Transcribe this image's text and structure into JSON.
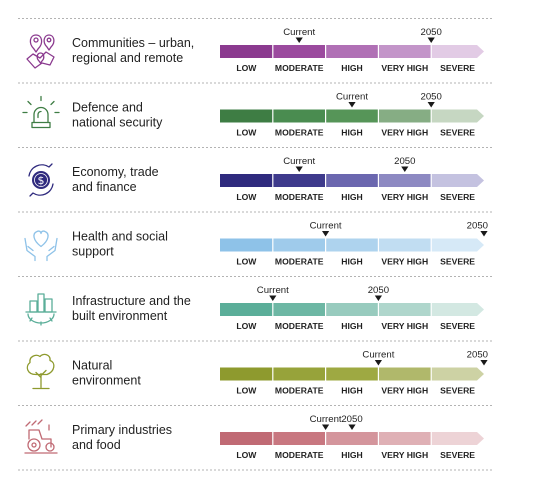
{
  "chart_data": {
    "type": "risk-scale",
    "levels": [
      "LOW",
      "MODERATE",
      "HIGH",
      "VERY HIGH",
      "SEVERE"
    ],
    "marker_labels": {
      "current": "Current",
      "future": "2050"
    },
    "rows": [
      {
        "title": [
          "Communities – urban,",
          "regional and remote"
        ],
        "icon": "map-pins-icon",
        "color": "#8B3A8F",
        "current": 1.5,
        "future": 4.0,
        "segments": [
          "#8B3A8F",
          "#9B4A9E",
          "#B070B5",
          "#C395C9",
          "#E2CBE5"
        ]
      },
      {
        "title": [
          "Defence and",
          "national security"
        ],
        "icon": "siren-icon",
        "color": "#3E7D44",
        "current": 2.5,
        "future": 4.0,
        "segments": [
          "#3E7D44",
          "#4A8C50",
          "#569558",
          "#86AD84",
          "#C6D7C2"
        ]
      },
      {
        "title": [
          "Economy, trade",
          "and finance"
        ],
        "icon": "coin-cycle-icon",
        "color": "#2F2A7E",
        "current": 1.5,
        "future": 3.5,
        "segments": [
          "#2F2A7E",
          "#3E3A8C",
          "#6B67AF",
          "#8D89C2",
          "#C4C2E0"
        ]
      },
      {
        "title": [
          "Health and social",
          "support"
        ],
        "icon": "heart-hands-icon",
        "color": "#8EC2E8",
        "current": 2.0,
        "future": 5.0,
        "segments": [
          "#8EC2E8",
          "#9FCBEB",
          "#AED3EE",
          "#C1DDF2",
          "#D6E9F7"
        ]
      },
      {
        "title": [
          "Infrastructure and the",
          "built environment"
        ],
        "icon": "city-gear-icon",
        "color": "#5BAE99",
        "current": 1.0,
        "future": 3.0,
        "segments": [
          "#5BAE99",
          "#6DB7A4",
          "#98CBBE",
          "#AFD6CC",
          "#D3E8E2"
        ]
      },
      {
        "title": [
          "Natural",
          "environment"
        ],
        "icon": "tree-icon",
        "color": "#8E9A2E",
        "current": 3.0,
        "future": 5.0,
        "segments": [
          "#8E9A2E",
          "#97A33A",
          "#9EA942",
          "#B0B86B",
          "#CDD2A4"
        ]
      },
      {
        "title": [
          "Primary industries",
          "and food"
        ],
        "icon": "tractor-icon",
        "color": "#C06A74",
        "current": 2.0,
        "future": 2.5,
        "segments": [
          "#C06A74",
          "#C87780",
          "#D4959C",
          "#DFB0B5",
          "#EDD3D6"
        ]
      }
    ]
  }
}
